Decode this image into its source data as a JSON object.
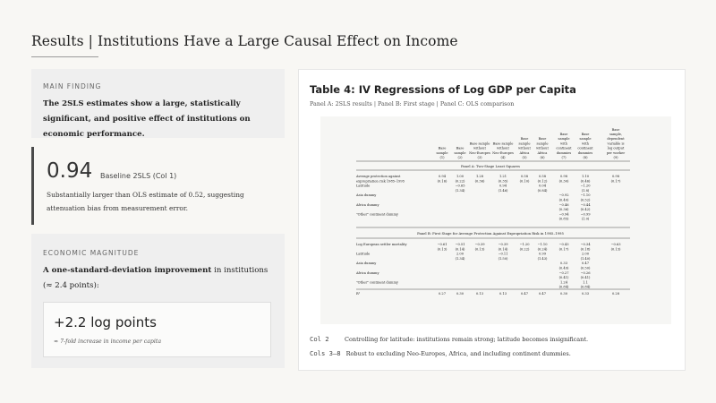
{
  "header": {
    "title": "Results | Institutions Have a Large Causal Effect on Income"
  },
  "finding": {
    "kicker": "MAIN FINDING",
    "text": "The 2SLS estimates show a large, statistically significant, and positive effect of institutions on economic performance."
  },
  "stat": {
    "value": "0.94",
    "label": "Baseline 2SLS (Col 1)",
    "description": "Substantially larger than OLS estimate of 0.52, suggesting attenuation bias from measurement error."
  },
  "magnitude": {
    "kicker": "ECONOMIC MAGNITUDE",
    "text_bold": "A one-standard-deviation improvement",
    "text_rest": " in institutions (≈ 2.4 points):",
    "value": "+2.2 log points",
    "note": "≈ 7-fold increase in income per capita"
  },
  "table_panel": {
    "title": "Table 4: IV Regressions of Log GDP per Capita",
    "subtitle": "Panel A: 2SLS results | Panel B: First stage | Panel C: OLS comparison",
    "notes": [
      {
        "code": "Col 2",
        "text": "Controlling for latitude: institutions remain strong; latitude becomes insignificant."
      },
      {
        "code": "Cols 3–8",
        "text": "Robust to excluding Neo-Europes, Africa, and including continent dummies."
      }
    ]
  },
  "scan": {
    "headers": [
      [
        "Base",
        "sample",
        "(1)"
      ],
      [
        "Base",
        "sample",
        "(2)"
      ],
      [
        "Base sample",
        "without",
        "Neo-Europes",
        "(3)"
      ],
      [
        "Base sample",
        "without",
        "Neo-Europes",
        "(4)"
      ],
      [
        "Base",
        "sample",
        "without",
        "Africa",
        "(5)"
      ],
      [
        "Base",
        "sample",
        "without",
        "Africa",
        "(6)"
      ],
      [
        "Base",
        "sample",
        "with",
        "continent",
        "dummies",
        "(7)"
      ],
      [
        "Base",
        "sample",
        "with",
        "continent",
        "dummies",
        "(8)"
      ],
      [
        "Base",
        "sample,",
        "dependent",
        "variable is",
        "log output",
        "per worker",
        "(9)"
      ]
    ],
    "panel_a_title": "Panel A: Two-Stage Least Squares",
    "panel_b_title": "Panel B: First Stage for Average Protection Against Expropriation Risk in 1985–1995",
    "rows_a": [
      {
        "label": "Average protection against",
        "cells": [
          "0.94",
          "1.00",
          "1.28",
          "1.21",
          "0.58",
          "0.58",
          "0.98",
          "1.10",
          "0.98"
        ]
      },
      {
        "label": "  expropriation risk 1985–1995",
        "cells": [
          "(0.16)",
          "(0.22)",
          "(0.36)",
          "(0.35)",
          "(0.10)",
          "(0.12)",
          "(0.30)",
          "(0.46)",
          "(0.17)"
        ]
      },
      {
        "label": "Latitude",
        "cells": [
          "",
          "−0.65",
          "",
          "0.94",
          "",
          "0.04",
          "",
          "−1.20",
          ""
        ]
      },
      {
        "label": "",
        "cells": [
          "",
          "(1.34)",
          "",
          "(1.46)",
          "",
          "(0.84)",
          "",
          "(1.8)",
          ""
        ]
      },
      {
        "label": "Asia dummy",
        "cells": [
          "",
          "",
          "",
          "",
          "",
          "",
          "−0.92",
          "−1.10",
          ""
        ]
      },
      {
        "label": "",
        "cells": [
          "",
          "",
          "",
          "",
          "",
          "",
          "(0.40)",
          "(0.52)",
          ""
        ]
      },
      {
        "label": "Africa dummy",
        "cells": [
          "",
          "",
          "",
          "",
          "",
          "",
          "−0.46",
          "−0.44",
          ""
        ]
      },
      {
        "label": "",
        "cells": [
          "",
          "",
          "",
          "",
          "",
          "",
          "(0.36)",
          "(0.42)",
          ""
        ]
      },
      {
        "label": "\"Other\" continent dummy",
        "cells": [
          "",
          "",
          "",
          "",
          "",
          "",
          "−0.94",
          "−0.99",
          ""
        ]
      },
      {
        "label": "",
        "cells": [
          "",
          "",
          "",
          "",
          "",
          "",
          "(0.85)",
          "(1.0)",
          ""
        ]
      }
    ],
    "rows_b": [
      {
        "label": "Log European settler mortality",
        "cells": [
          "−0.61",
          "−0.51",
          "−0.39",
          "−0.39",
          "−1.20",
          "−1.10",
          "−0.43",
          "−0.34",
          "−0.63"
        ]
      },
      {
        "label": "",
        "cells": [
          "(0.13)",
          "(0.14)",
          "(0.13)",
          "(0.14)",
          "(0.22)",
          "(0.24)",
          "(0.17)",
          "(0.18)",
          "(0.13)"
        ]
      },
      {
        "label": "Latitude",
        "cells": [
          "",
          "2.00",
          "",
          "−0.11",
          "",
          "0.99",
          "",
          "2.00",
          ""
        ]
      },
      {
        "label": "",
        "cells": [
          "",
          "(1.34)",
          "",
          "(1.50)",
          "",
          "(1.43)",
          "",
          "(1.40)",
          ""
        ]
      },
      {
        "label": "Asia dummy",
        "cells": [
          "",
          "",
          "",
          "",
          "",
          "",
          "0.33",
          "0.47",
          ""
        ]
      },
      {
        "label": "",
        "cells": [
          "",
          "",
          "",
          "",
          "",
          "",
          "(0.49)",
          "(0.50)",
          ""
        ]
      },
      {
        "label": "Africa dummy",
        "cells": [
          "",
          "",
          "",
          "",
          "",
          "",
          "−0.27",
          "−0.26",
          ""
        ]
      },
      {
        "label": "",
        "cells": [
          "",
          "",
          "",
          "",
          "",
          "",
          "(0.41)",
          "(0.41)",
          ""
        ]
      },
      {
        "label": "\"Other\" continent dummy",
        "cells": [
          "",
          "",
          "",
          "",
          "",
          "",
          "1.24",
          "1.1",
          ""
        ]
      },
      {
        "label": "",
        "cells": [
          "",
          "",
          "",
          "",
          "",
          "",
          "(0.84)",
          "(0.84)",
          ""
        ]
      },
      {
        "label": "R²",
        "cells": [
          "0.27",
          "0.30",
          "0.13",
          "0.13",
          "0.47",
          "0.47",
          "0.30",
          "0.33",
          "0.28"
        ]
      }
    ]
  }
}
